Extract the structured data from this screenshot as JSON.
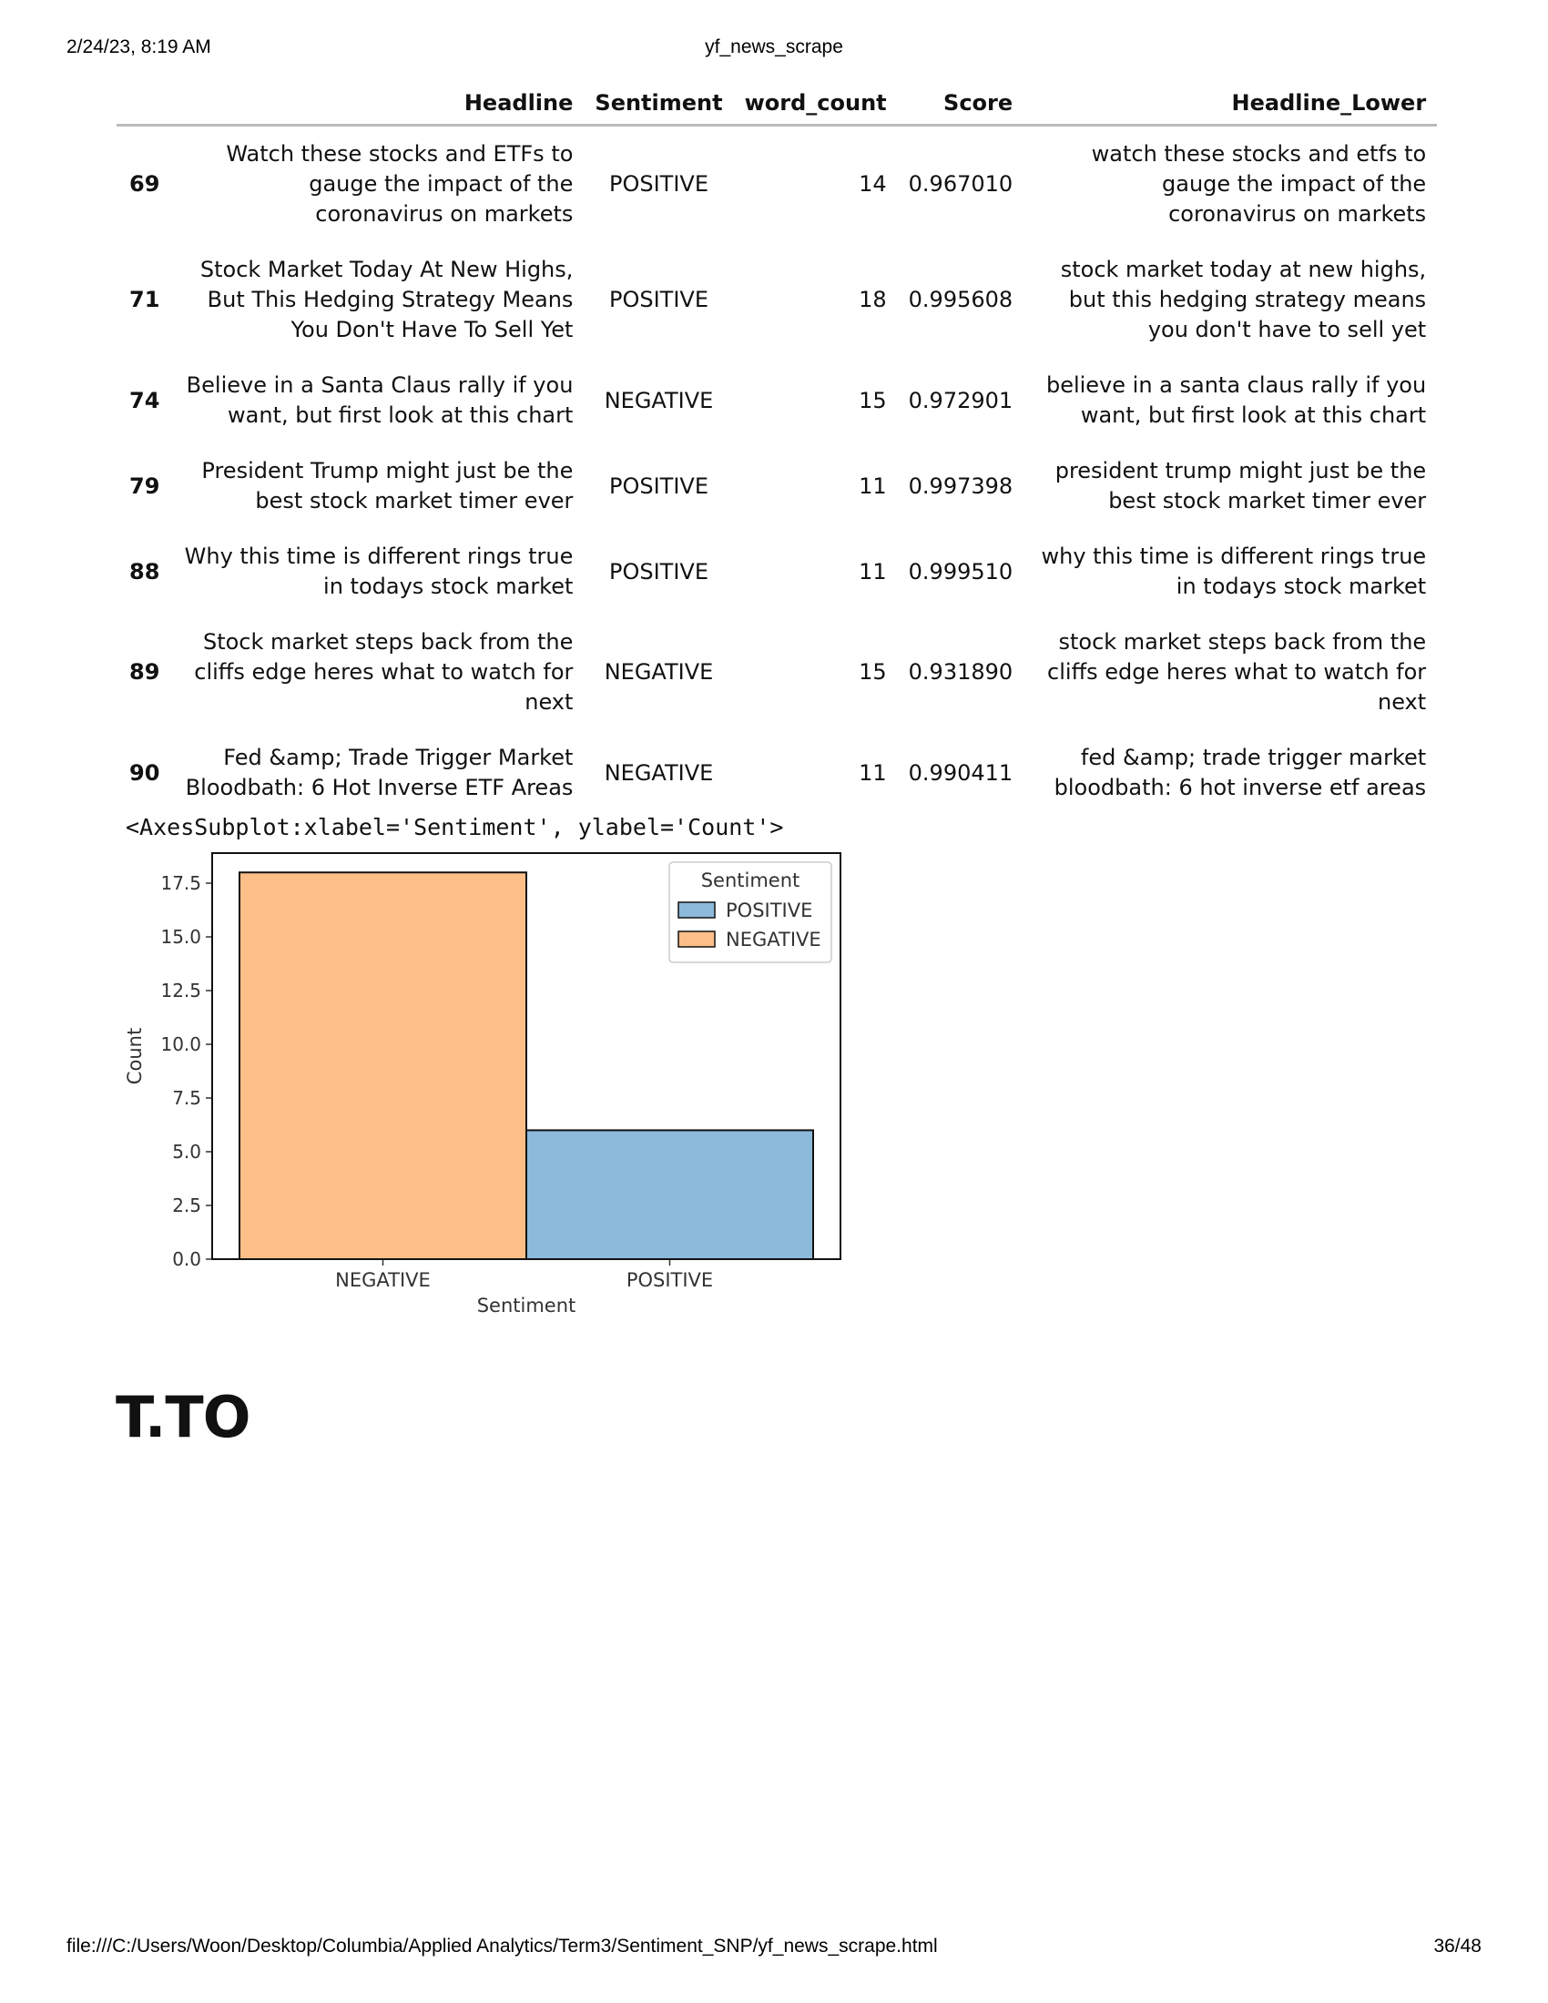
{
  "print_header": {
    "datetime": "2/24/23, 8:19 AM",
    "title": "yf_news_scrape"
  },
  "print_footer": {
    "path": "file:///C:/Users/Woon/Desktop/Columbia/Applied Analytics/Term3/Sentiment_SNP/yf_news_scrape.html",
    "page": "36/48"
  },
  "table": {
    "columns": [
      "",
      "Headline",
      "Sentiment",
      "word_count",
      "Score",
      "Headline_Lower"
    ],
    "rows": [
      {
        "index": "69",
        "headline": "Watch these stocks and ETFs to gauge the impact of the coronavirus on markets",
        "sentiment": "POSITIVE",
        "word_count": "14",
        "score": "0.967010",
        "headline_lower": "watch these stocks and etfs to gauge the impact of the coronavirus on markets"
      },
      {
        "index": "71",
        "headline": "Stock Market Today At New Highs, But This Hedging Strategy Means You Don't Have To Sell Yet",
        "sentiment": "POSITIVE",
        "word_count": "18",
        "score": "0.995608",
        "headline_lower": "stock market today at new highs, but this hedging strategy means you don't have to sell yet"
      },
      {
        "index": "74",
        "headline": "Believe in a Santa Claus rally if you want, but first look at this chart",
        "sentiment": "NEGATIVE",
        "word_count": "15",
        "score": "0.972901",
        "headline_lower": "believe in a santa claus rally if you want, but first look at this chart"
      },
      {
        "index": "79",
        "headline": "President Trump might just be the best stock market timer ever",
        "sentiment": "POSITIVE",
        "word_count": "11",
        "score": "0.997398",
        "headline_lower": "president trump might just be the best stock market timer ever"
      },
      {
        "index": "88",
        "headline": "Why this time is different rings true in todays stock market",
        "sentiment": "POSITIVE",
        "word_count": "11",
        "score": "0.999510",
        "headline_lower": "why this time is different rings true in todays stock market"
      },
      {
        "index": "89",
        "headline": "Stock market steps back from the cliffs edge heres what to watch for next",
        "sentiment": "NEGATIVE",
        "word_count": "15",
        "score": "0.931890",
        "headline_lower": "stock market steps back from the cliffs edge heres what to watch for next"
      },
      {
        "index": "90",
        "headline": "Fed &amp; Trade Trigger Market Bloodbath: 6 Hot Inverse ETF Areas",
        "sentiment": "NEGATIVE",
        "word_count": "11",
        "score": "0.990411",
        "headline_lower": "fed &amp; trade trigger market bloodbath: 6 hot inverse etf areas"
      }
    ]
  },
  "axes_repr": "<AxesSubplot:xlabel='Sentiment', ylabel='Count'>",
  "chart_data": {
    "type": "bar",
    "categories": [
      "NEGATIVE",
      "POSITIVE"
    ],
    "values": [
      18,
      6
    ],
    "bar_colors": [
      "#fdbf87",
      "#8db9da"
    ],
    "xlabel": "Sentiment",
    "ylabel": "Count",
    "ylim": [
      0,
      18.9
    ],
    "yticks": [
      "0.0",
      "2.5",
      "5.0",
      "7.5",
      "10.0",
      "12.5",
      "15.0",
      "17.5"
    ],
    "ytick_values": [
      0,
      2.5,
      5,
      7.5,
      10,
      12.5,
      15,
      17.5
    ],
    "grid": false,
    "legend": {
      "title": "Sentiment",
      "placement": "top-right",
      "entries": [
        {
          "label": "POSITIVE",
          "color": "#8db9da"
        },
        {
          "label": "NEGATIVE",
          "color": "#fdbf87"
        }
      ]
    }
  },
  "section_heading": "T.TO"
}
